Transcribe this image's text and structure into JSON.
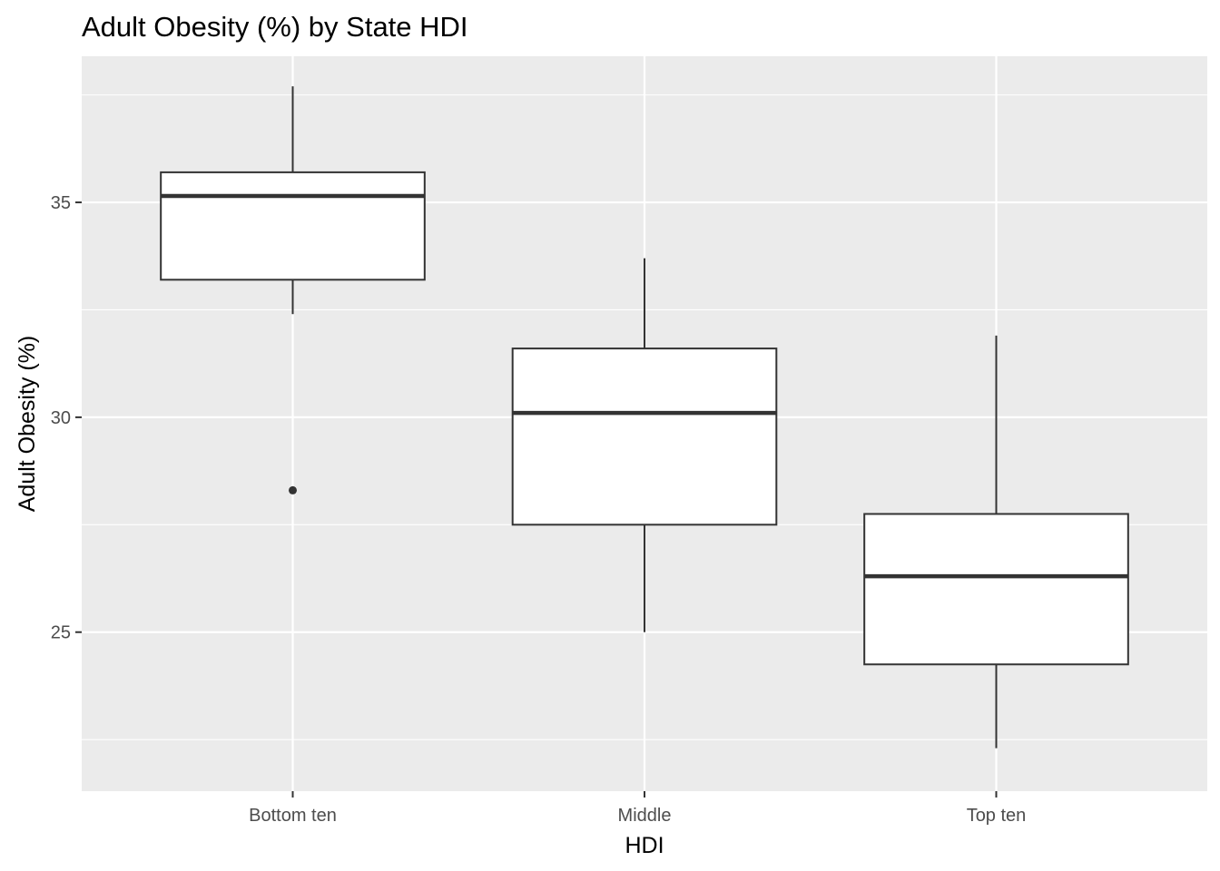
{
  "chart_data": {
    "type": "boxplot",
    "title": "Adult Obesity (%) by State HDI",
    "xlabel": "HDI",
    "ylabel": "Adult Obesity (%)",
    "categories": [
      "Bottom ten",
      "Middle",
      "Top ten"
    ],
    "ylim": [
      21.3,
      38.4
    ],
    "y_ticks": [
      25,
      30,
      35
    ],
    "y_minor_ticks": [
      22.5,
      27.5,
      32.5,
      37.5
    ],
    "grid": true,
    "boxes": [
      {
        "category": "Bottom ten",
        "whisker_low": 32.4,
        "q1": 33.2,
        "median": 35.15,
        "q3": 35.7,
        "whisker_high": 37.7,
        "outliers": [
          28.3
        ]
      },
      {
        "category": "Middle",
        "whisker_low": 25.0,
        "q1": 27.5,
        "median": 30.1,
        "q3": 31.6,
        "whisker_high": 33.7,
        "outliers": []
      },
      {
        "category": "Top ten",
        "whisker_low": 22.3,
        "q1": 24.25,
        "median": 26.3,
        "q3": 27.75,
        "whisker_high": 31.9,
        "outliers": []
      }
    ],
    "colors": {
      "panel_background": "#EBEBEB",
      "grid_line": "#FFFFFF",
      "box_fill": "#FFFFFF",
      "box_stroke": "#333333",
      "tick_label": "#4D4D4D",
      "tick_mark": "#333333"
    }
  }
}
